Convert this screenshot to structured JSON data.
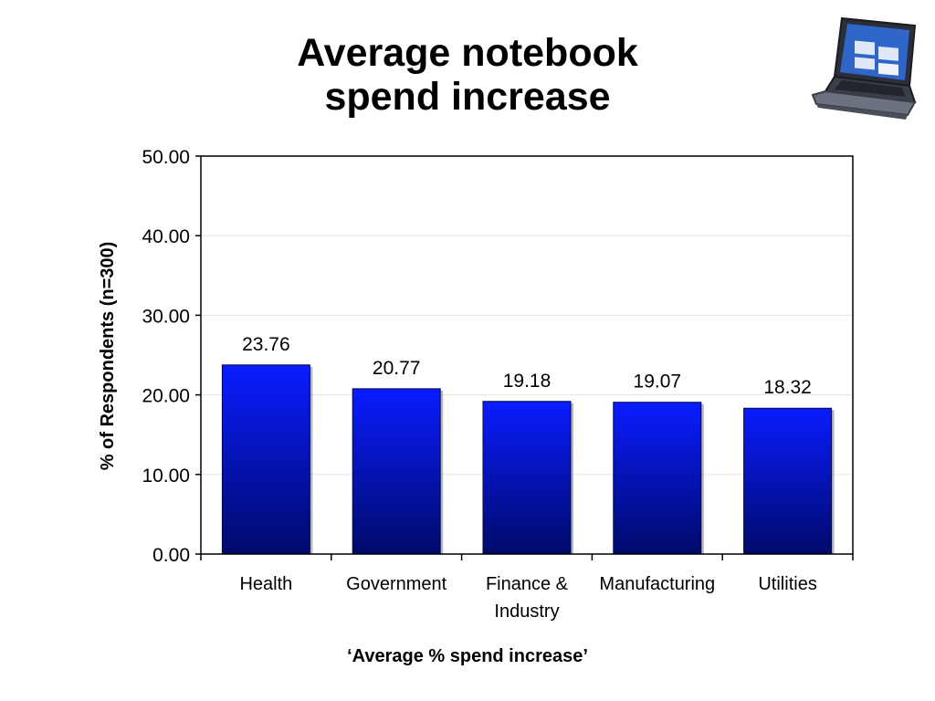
{
  "slide": {
    "title_line1": "Average notebook",
    "title_line2": "spend increase",
    "footnote": "‘Average % spend increase’"
  },
  "decoration": {
    "icon": "laptop-icon"
  },
  "chart_data": {
    "type": "bar",
    "categories": [
      [
        "Health"
      ],
      [
        "Government"
      ],
      [
        "Finance &",
        "Industry"
      ],
      [
        "Manufacturing"
      ],
      [
        "Utilities"
      ]
    ],
    "values": [
      23.76,
      20.77,
      19.18,
      19.07,
      18.32
    ],
    "data_labels": [
      "23.76",
      "20.77",
      "19.18",
      "19.07",
      "18.32"
    ],
    "ylabel": "% of Respondents (n=300)",
    "ylim": [
      0,
      50
    ],
    "yticks": [
      0,
      10,
      20,
      30,
      40,
      50
    ],
    "ytick_labels": [
      "0.00",
      "10.00",
      "20.00",
      "30.00",
      "40.00",
      "50.00"
    ],
    "grid": true,
    "colors": {
      "bar_top": "#0a1cff",
      "bar_bottom": "#000a6a",
      "grid": "#e6e6e6"
    }
  }
}
